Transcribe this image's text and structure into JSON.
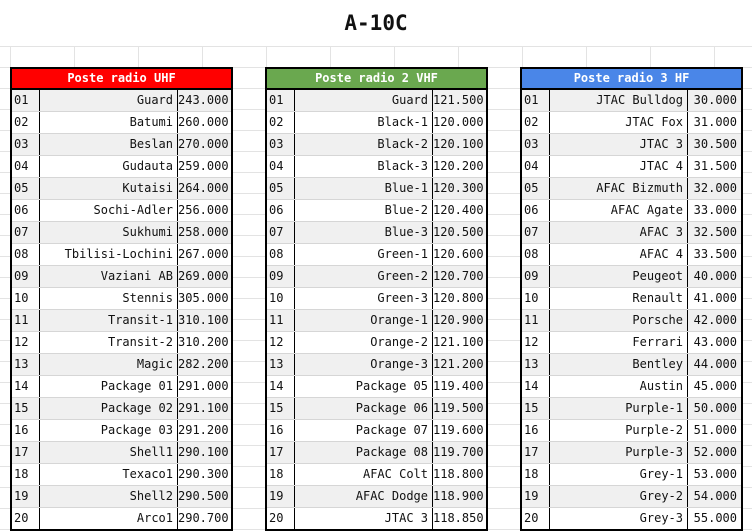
{
  "title": "A-10C",
  "tables": [
    {
      "header": "Poste radio UHF",
      "color": "#ff0000",
      "rows": [
        [
          "01",
          "Guard",
          "243.000"
        ],
        [
          "02",
          "Batumi",
          "260.000"
        ],
        [
          "03",
          "Beslan",
          "270.000"
        ],
        [
          "04",
          "Gudauta",
          "259.000"
        ],
        [
          "05",
          "Kutaisi",
          "264.000"
        ],
        [
          "06",
          "Sochi-Adler",
          "256.000"
        ],
        [
          "07",
          "Sukhumi",
          "258.000"
        ],
        [
          "08",
          "Tbilisi-Lochini",
          "267.000"
        ],
        [
          "09",
          "Vaziani AB",
          "269.000"
        ],
        [
          "10",
          "Stennis",
          "305.000"
        ],
        [
          "11",
          "Transit-1",
          "310.100"
        ],
        [
          "12",
          "Transit-2",
          "310.200"
        ],
        [
          "13",
          "Magic",
          "282.200"
        ],
        [
          "14",
          "Package 01",
          "291.000"
        ],
        [
          "15",
          "Package 02",
          "291.100"
        ],
        [
          "16",
          "Package 03",
          "291.200"
        ],
        [
          "17",
          "Shell1",
          "290.100"
        ],
        [
          "18",
          "Texaco1",
          "290.300"
        ],
        [
          "19",
          "Shell2",
          "290.500"
        ],
        [
          "20",
          "Arco1",
          "290.700"
        ]
      ]
    },
    {
      "header": "Poste radio 2 VHF",
      "color": "#6aa84f",
      "rows": [
        [
          "01",
          "Guard",
          "121.500"
        ],
        [
          "02",
          "Black-1",
          "120.000"
        ],
        [
          "03",
          "Black-2",
          "120.100"
        ],
        [
          "04",
          "Black-3",
          "120.200"
        ],
        [
          "05",
          "Blue-1",
          "120.300"
        ],
        [
          "06",
          "Blue-2",
          "120.400"
        ],
        [
          "07",
          "Blue-3",
          "120.500"
        ],
        [
          "08",
          "Green-1",
          "120.600"
        ],
        [
          "09",
          "Green-2",
          "120.700"
        ],
        [
          "10",
          "Green-3",
          "120.800"
        ],
        [
          "11",
          "Orange-1",
          "120.900"
        ],
        [
          "12",
          "Orange-2",
          "121.100"
        ],
        [
          "13",
          "Orange-3",
          "121.200"
        ],
        [
          "14",
          "Package 05",
          "119.400"
        ],
        [
          "15",
          "Package 06",
          "119.500"
        ],
        [
          "16",
          "Package 07",
          "119.600"
        ],
        [
          "17",
          "Package 08",
          "119.700"
        ],
        [
          "18",
          "AFAC Colt",
          "118.800"
        ],
        [
          "19",
          "AFAC Dodge",
          "118.900"
        ],
        [
          "20",
          "JTAC 3",
          "118.850"
        ]
      ]
    },
    {
      "header": "Poste radio 3 HF",
      "color": "#4a86e8",
      "rows": [
        [
          "01",
          "JTAC Bulldog",
          "30.000"
        ],
        [
          "02",
          "JTAC Fox",
          "31.000"
        ],
        [
          "03",
          "JTAC 3",
          "30.500"
        ],
        [
          "04",
          "JTAC 4",
          "31.500"
        ],
        [
          "05",
          "AFAC Bizmuth",
          "32.000"
        ],
        [
          "06",
          "AFAC Agate",
          "33.000"
        ],
        [
          "07",
          "AFAC 3",
          "32.500"
        ],
        [
          "08",
          "AFAC 4",
          "33.500"
        ],
        [
          "09",
          "Peugeot",
          "40.000"
        ],
        [
          "10",
          "Renault",
          "41.000"
        ],
        [
          "11",
          "Porsche",
          "42.000"
        ],
        [
          "12",
          "Ferrari",
          "43.000"
        ],
        [
          "13",
          "Bentley",
          "44.000"
        ],
        [
          "14",
          "Austin",
          "45.000"
        ],
        [
          "15",
          "Purple-1",
          "50.000"
        ],
        [
          "16",
          "Purple-2",
          "51.000"
        ],
        [
          "17",
          "Purple-3",
          "52.000"
        ],
        [
          "18",
          "Grey-1",
          "53.000"
        ],
        [
          "19",
          "Grey-2",
          "54.000"
        ],
        [
          "20",
          "Grey-3",
          "55.000"
        ]
      ]
    }
  ]
}
